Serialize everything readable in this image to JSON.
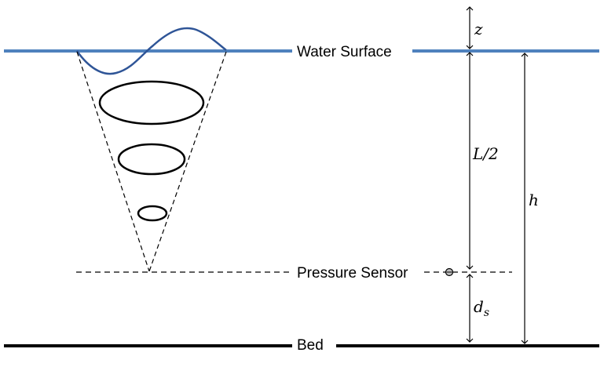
{
  "labels": {
    "water_surface": "Water Surface",
    "pressure_sensor": "Pressure Sensor",
    "bed": "Bed"
  },
  "dimensions": {
    "z": "z",
    "half_length": "L/2",
    "depth": "h",
    "sensor_height": "d",
    "sensor_height_subscript": "s"
  },
  "colors": {
    "water_surface": "#4f81bd",
    "wave": "#2f5597",
    "ink": "#000000"
  }
}
